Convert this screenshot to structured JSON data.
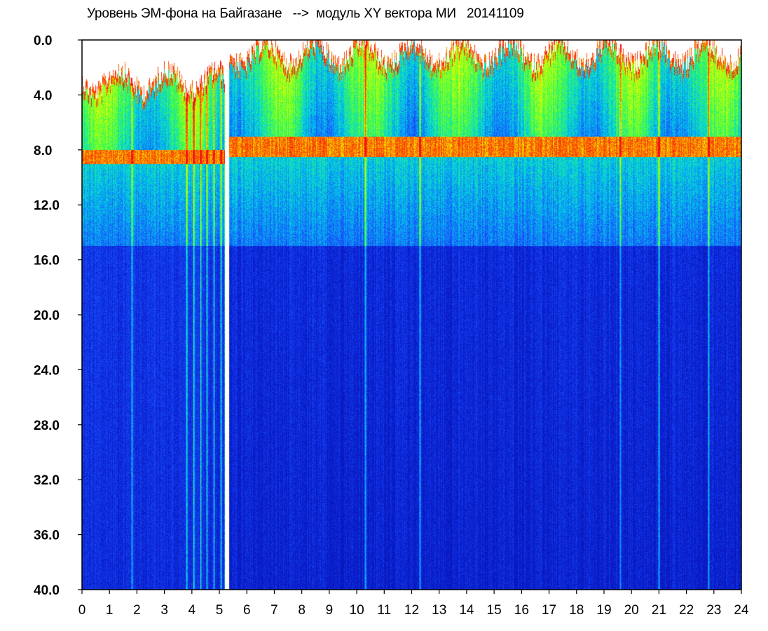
{
  "chart_data": {
    "type": "heatmap",
    "title": "Уровень ЭМ-фона на Байгазане   -->  модуль XY вектора МИ   20141109",
    "xlabel": "",
    "ylabel": "",
    "x_range": [
      0,
      24
    ],
    "y_range": [
      0.0,
      40.0
    ],
    "y_inverted": true,
    "x_ticks": [
      "0",
      "1",
      "2",
      "3",
      "4",
      "5",
      "6",
      "7",
      "8",
      "9",
      "10",
      "11",
      "12",
      "13",
      "14",
      "15",
      "16",
      "17",
      "18",
      "19",
      "20",
      "21",
      "22",
      "23",
      "24"
    ],
    "y_ticks": [
      "0.0",
      "4.0",
      "8.0",
      "12.0",
      "16.0",
      "20.0",
      "24.0",
      "28.0",
      "32.0",
      "36.0",
      "40.0"
    ],
    "grid": false,
    "colormap": [
      "#0a1ec8",
      "#1e5aff",
      "#00e6e6",
      "#3cff3c",
      "#ffff00",
      "#ff3c00"
    ],
    "gap_region": {
      "x_start": 5.2,
      "x_end": 5.35
    },
    "intensity_profile_note": "",
    "segments": [
      {
        "x_start": 0.0,
        "x_end": 5.25,
        "upper_edge": 3.5,
        "dense_band": [
          8.0,
          9.0
        ],
        "noisy_to": 15.0
      },
      {
        "x_start": 5.25,
        "x_end": 24.0,
        "upper_edge": 1.5,
        "dense_band": [
          7.0,
          8.5
        ],
        "noisy_to": 15.0
      }
    ],
    "dropouts": [
      1.8,
      3.8,
      4.05,
      4.3,
      4.55,
      4.8,
      5.05,
      5.2,
      10.3,
      12.3,
      19.6,
      21.0,
      22.8
    ]
  }
}
